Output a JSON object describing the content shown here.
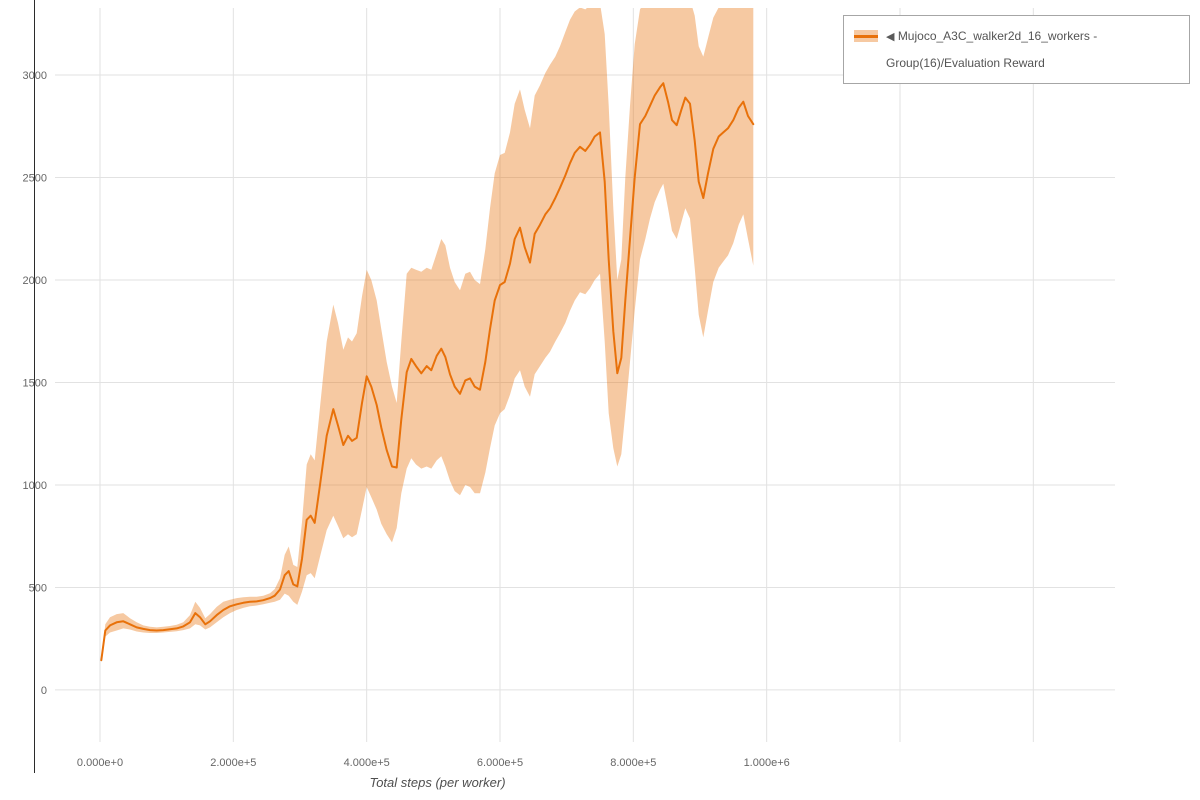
{
  "legend": {
    "toggle_icon": "◀",
    "label": "Mujoco_A3C_walker2d_16_workers - Group(16)/Evaluation Reward"
  },
  "chart_data": {
    "type": "line",
    "title": "",
    "xlabel": "Total steps (per worker)",
    "ylabel": "",
    "legend_position": "top-right",
    "grid": true,
    "xlim": [
      -67500,
      1522500
    ],
    "ylim": [
      -254,
      3327
    ],
    "x_ticks": [
      {
        "value": 0,
        "label": "0.000e+0"
      },
      {
        "value": 200000,
        "label": "2.000e+5"
      },
      {
        "value": 400000,
        "label": "4.000e+5"
      },
      {
        "value": 600000,
        "label": "6.000e+5"
      },
      {
        "value": 800000,
        "label": "8.000e+5"
      },
      {
        "value": 1000000,
        "label": "1.000e+6"
      }
    ],
    "x_grid_extra": [
      1200000,
      1400000
    ],
    "y_ticks": [
      {
        "value": 0,
        "label": "0"
      },
      {
        "value": 500,
        "label": "500"
      },
      {
        "value": 1000,
        "label": "1000"
      },
      {
        "value": 1500,
        "label": "1500"
      },
      {
        "value": 2000,
        "label": "2000"
      },
      {
        "value": 2500,
        "label": "2500"
      },
      {
        "value": 3000,
        "label": "3000"
      }
    ],
    "colors": {
      "line": "#e8710a",
      "band": "rgba(232,113,10,0.38)",
      "grid": "#e2e2e2",
      "tick_label": "#666666",
      "axis_title": "#4f4f4f",
      "axis_line": "#2b2b2b"
    },
    "series": [
      {
        "name": "Mujoco_A3C_walker2d_16_workers - Group(16)/Evaluation Reward",
        "x": [
          2000,
          8000,
          15000,
          25000,
          35000,
          45000,
          55000,
          65000,
          75000,
          85000,
          95000,
          105000,
          115000,
          125000,
          135000,
          143000,
          150000,
          158000,
          165000,
          175000,
          185000,
          195000,
          205000,
          215000,
          225000,
          235000,
          245000,
          255000,
          262000,
          270000,
          277000,
          283000,
          290000,
          296000,
          303000,
          310000,
          316000,
          322000,
          330000,
          340000,
          350000,
          357000,
          365000,
          372000,
          378000,
          385000,
          393000,
          400000,
          407000,
          415000,
          422000,
          430000,
          438000,
          445000,
          452000,
          460000,
          467000,
          474000,
          482000,
          490000,
          497000,
          505000,
          512000,
          518000,
          525000,
          532000,
          540000,
          548000,
          555000,
          562000,
          570000,
          578000,
          585000,
          592000,
          600000,
          607000,
          615000,
          622000,
          630000,
          637000,
          645000,
          652000,
          660000,
          668000,
          675000,
          683000,
          690000,
          698000,
          705000,
          712000,
          720000,
          728000,
          735000,
          742000,
          750000,
          757000,
          763000,
          770000,
          776000,
          782000,
          788000,
          795000,
          802000,
          810000,
          818000,
          825000,
          832000,
          840000,
          845000,
          852000,
          858000,
          865000,
          872000,
          878000,
          885000,
          892000,
          898000,
          905000,
          912000,
          920000,
          928000,
          935000,
          942000,
          950000,
          958000,
          965000,
          972000,
          980000
        ],
        "mean": [
          145,
          290,
          315,
          330,
          335,
          320,
          305,
          298,
          292,
          290,
          292,
          296,
          300,
          310,
          330,
          375,
          355,
          320,
          335,
          365,
          390,
          408,
          418,
          425,
          430,
          432,
          438,
          448,
          460,
          490,
          560,
          580,
          515,
          505,
          640,
          830,
          850,
          815,
          1000,
          1240,
          1370,
          1290,
          1195,
          1240,
          1215,
          1230,
          1400,
          1530,
          1480,
          1390,
          1280,
          1170,
          1090,
          1085,
          1320,
          1550,
          1615,
          1580,
          1545,
          1580,
          1560,
          1630,
          1665,
          1625,
          1540,
          1480,
          1445,
          1510,
          1520,
          1480,
          1465,
          1600,
          1760,
          1900,
          1975,
          1990,
          2080,
          2200,
          2255,
          2160,
          2085,
          2225,
          2270,
          2320,
          2350,
          2400,
          2450,
          2510,
          2570,
          2620,
          2650,
          2630,
          2660,
          2700,
          2720,
          2480,
          2100,
          1750,
          1545,
          1620,
          1900,
          2200,
          2500,
          2760,
          2800,
          2850,
          2900,
          2940,
          2960,
          2870,
          2780,
          2755,
          2830,
          2890,
          2860,
          2680,
          2480,
          2400,
          2520,
          2640,
          2700,
          2720,
          2740,
          2780,
          2840,
          2870,
          2800,
          2760
        ],
        "lower": [
          140,
          260,
          280,
          290,
          300,
          295,
          285,
          280,
          278,
          278,
          280,
          283,
          286,
          292,
          300,
          320,
          315,
          295,
          305,
          330,
          355,
          375,
          390,
          400,
          408,
          412,
          418,
          425,
          430,
          440,
          470,
          460,
          430,
          415,
          480,
          560,
          570,
          545,
          650,
          780,
          850,
          800,
          740,
          760,
          745,
          760,
          880,
          990,
          940,
          880,
          810,
          760,
          720,
          790,
          960,
          1080,
          1130,
          1100,
          1080,
          1090,
          1080,
          1120,
          1140,
          1090,
          1020,
          970,
          950,
          1000,
          990,
          960,
          960,
          1060,
          1180,
          1290,
          1350,
          1370,
          1440,
          1520,
          1560,
          1480,
          1430,
          1540,
          1580,
          1620,
          1650,
          1700,
          1740,
          1790,
          1850,
          1900,
          1940,
          1930,
          1960,
          2000,
          2030,
          1700,
          1350,
          1180,
          1090,
          1150,
          1350,
          1600,
          1850,
          2100,
          2200,
          2300,
          2380,
          2440,
          2470,
          2350,
          2240,
          2200,
          2280,
          2350,
          2300,
          2060,
          1830,
          1720,
          1850,
          1990,
          2060,
          2090,
          2120,
          2180,
          2270,
          2320,
          2200,
          2070
        ],
        "upper": [
          150,
          320,
          355,
          370,
          375,
          350,
          330,
          315,
          308,
          305,
          308,
          312,
          318,
          330,
          365,
          430,
          400,
          350,
          370,
          405,
          430,
          440,
          448,
          452,
          455,
          455,
          460,
          472,
          492,
          545,
          660,
          700,
          610,
          600,
          820,
          1100,
          1150,
          1120,
          1380,
          1700,
          1880,
          1790,
          1660,
          1720,
          1700,
          1740,
          1920,
          2050,
          2000,
          1900,
          1760,
          1600,
          1480,
          1400,
          1700,
          2030,
          2060,
          2050,
          2040,
          2060,
          2050,
          2130,
          2200,
          2170,
          2060,
          1990,
          1950,
          2030,
          2040,
          2000,
          1980,
          2150,
          2350,
          2520,
          2610,
          2620,
          2720,
          2860,
          2930,
          2830,
          2740,
          2900,
          2950,
          3010,
          3050,
          3090,
          3140,
          3210,
          3270,
          3310,
          3330,
          3320,
          3340,
          3350,
          3350,
          3200,
          2850,
          2350,
          2000,
          2100,
          2500,
          2850,
          3150,
          3320,
          3360,
          3370,
          3380,
          3390,
          3390,
          3370,
          3340,
          3330,
          3360,
          3380,
          3370,
          3290,
          3140,
          3090,
          3180,
          3280,
          3330,
          3350,
          3360,
          3370,
          3380,
          3390,
          3360,
          3350
        ]
      }
    ]
  }
}
